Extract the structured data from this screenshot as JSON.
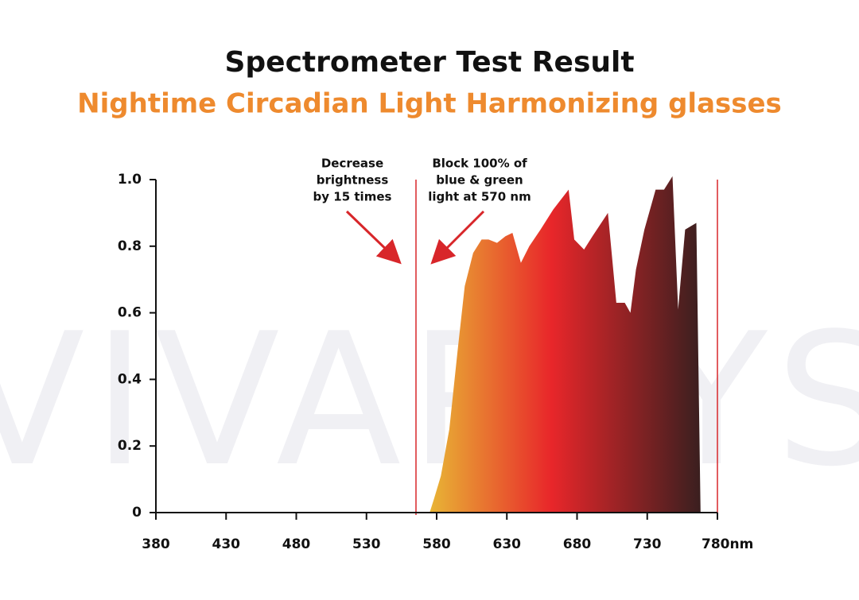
{
  "chart_data": {
    "type": "area",
    "title": "Spectrometer Test Result",
    "subtitle": "Nightime Circadian Light Harmonizing glasses",
    "watermark": "VIVARAYS",
    "annotations": [
      [
        "Decrease",
        "brightness",
        "by 15 times"
      ],
      [
        "Block 100% of",
        "blue & green",
        "light at 570 nm"
      ]
    ],
    "x": [
      575,
      578,
      583,
      589,
      595,
      600,
      606,
      612,
      617,
      623,
      629,
      634,
      640,
      646,
      654,
      663,
      674,
      678,
      685,
      691,
      702,
      708,
      714,
      718,
      722,
      728,
      736,
      742,
      748,
      752,
      757,
      765,
      768
    ],
    "values": [
      0,
      0.04,
      0.11,
      0.25,
      0.49,
      0.68,
      0.78,
      0.82,
      0.82,
      0.81,
      0.83,
      0.84,
      0.75,
      0.8,
      0.85,
      0.91,
      0.97,
      0.82,
      0.79,
      0.83,
      0.9,
      0.63,
      0.63,
      0.6,
      0.73,
      0.85,
      0.97,
      0.97,
      1.01,
      0.61,
      0.85,
      0.87,
      0
    ],
    "colors": [
      "#e8b535",
      "#e8262a",
      "#3a1f1f"
    ],
    "xlim": [
      380,
      780
    ],
    "xticks": [
      380,
      430,
      480,
      530,
      580,
      630,
      680,
      730,
      {
        "value": 780,
        "label": "780nm"
      }
    ],
    "ylim": [
      0,
      1
    ],
    "yticks": [
      0,
      0.2,
      0.4,
      0.6,
      0.8,
      {
        "value": 1,
        "label": "1.0"
      }
    ]
  }
}
